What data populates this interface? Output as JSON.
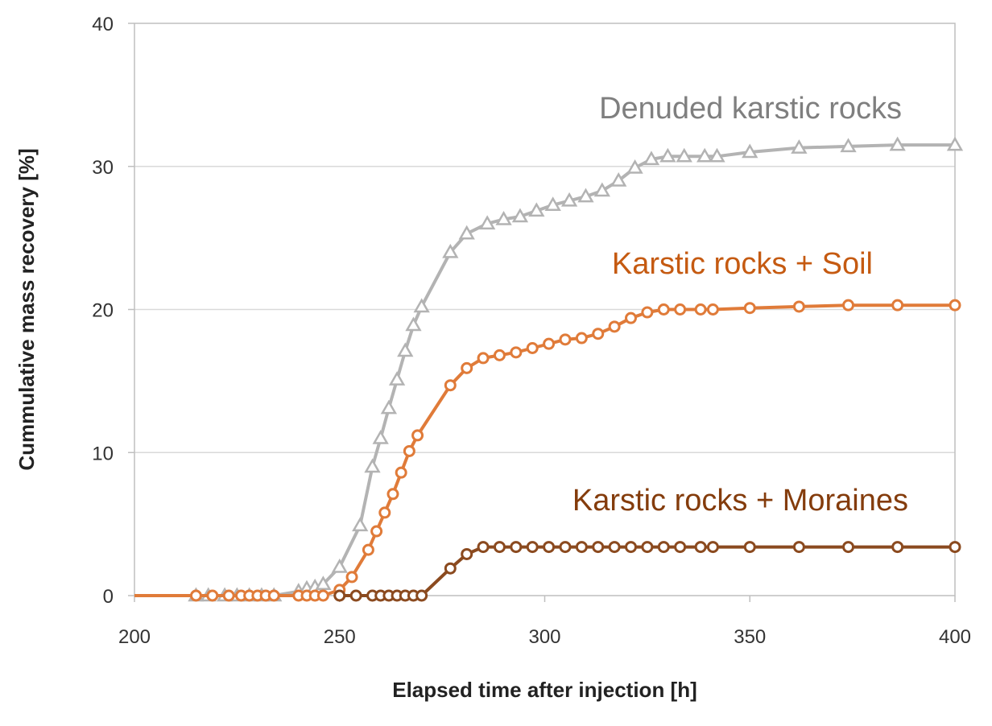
{
  "chart_data": {
    "type": "line",
    "xlabel": "Elapsed time after injection [h]",
    "ylabel": "Cummulative mass recovery [%]",
    "xlim": [
      200,
      400
    ],
    "ylim": [
      0,
      40
    ],
    "x_ticks": [
      "200",
      "250",
      "300",
      "350",
      "400"
    ],
    "y_ticks": [
      "0",
      "10",
      "20",
      "30",
      "40"
    ],
    "grid": "horizontal",
    "legend": "none",
    "series": [
      {
        "name": "Denuded karstic rocks",
        "color": "#b3b3b3",
        "label_color": "#7f7f7f",
        "marker": "triangle",
        "x": [
          215,
          218,
          222,
          225,
          228,
          231,
          234,
          240,
          242,
          244,
          246,
          250,
          255,
          258,
          260,
          262,
          264,
          266,
          268,
          270,
          277,
          281,
          286,
          290,
          294,
          298,
          302,
          306,
          310,
          314,
          318,
          322,
          326,
          330,
          334,
          339,
          342,
          350,
          362,
          374,
          386,
          400
        ],
        "y": [
          0,
          0,
          0,
          0,
          0,
          0,
          0,
          0.3,
          0.5,
          0.6,
          0.8,
          2.0,
          4.9,
          9.0,
          11.0,
          13.1,
          15.1,
          17.1,
          18.9,
          20.2,
          24.0,
          25.3,
          26.0,
          26.3,
          26.5,
          26.9,
          27.3,
          27.6,
          27.9,
          28.3,
          29.0,
          29.9,
          30.5,
          30.7,
          30.7,
          30.7,
          30.7,
          31.0,
          31.3,
          31.4,
          31.5,
          31.5
        ]
      },
      {
        "name": "Karstic rocks + Soil",
        "color": "#e07b39",
        "label_color": "#c55a11",
        "marker": "circle",
        "x": [
          200,
          215,
          219,
          223,
          226,
          228,
          230,
          232,
          234,
          240,
          242,
          244,
          246,
          250,
          253,
          257,
          259,
          261,
          263,
          265,
          267,
          269,
          277,
          281,
          285,
          289,
          293,
          297,
          301,
          305,
          309,
          313,
          317,
          321,
          325,
          329,
          333,
          338,
          341,
          350,
          362,
          374,
          386,
          400
        ],
        "y": [
          0,
          0,
          0,
          0,
          0,
          0,
          0,
          0,
          0,
          0,
          0,
          0,
          0,
          0.4,
          1.3,
          3.2,
          4.5,
          5.8,
          7.1,
          8.6,
          10.1,
          11.2,
          14.7,
          15.9,
          16.6,
          16.8,
          17.0,
          17.3,
          17.6,
          17.9,
          18.0,
          18.3,
          18.8,
          19.4,
          19.8,
          20.0,
          20.0,
          20.0,
          20.0,
          20.1,
          20.2,
          20.3,
          20.3,
          20.3
        ]
      },
      {
        "name": "Karstic rocks + Moraines",
        "color": "#8b4a1f",
        "label_color": "#843c0c",
        "marker": "circle",
        "x": [
          250,
          254,
          258,
          260,
          262,
          264,
          266,
          268,
          270,
          277,
          281,
          285,
          289,
          293,
          297,
          301,
          305,
          309,
          313,
          317,
          321,
          325,
          329,
          333,
          338,
          341,
          350,
          362,
          374,
          386,
          400
        ],
        "y": [
          0,
          0,
          0,
          0,
          0,
          0,
          0,
          0,
          0,
          1.9,
          2.9,
          3.4,
          3.4,
          3.4,
          3.4,
          3.4,
          3.4,
          3.4,
          3.4,
          3.4,
          3.4,
          3.4,
          3.4,
          3.4,
          3.4,
          3.4,
          3.4,
          3.4,
          3.4,
          3.4,
          3.4
        ]
      }
    ]
  }
}
